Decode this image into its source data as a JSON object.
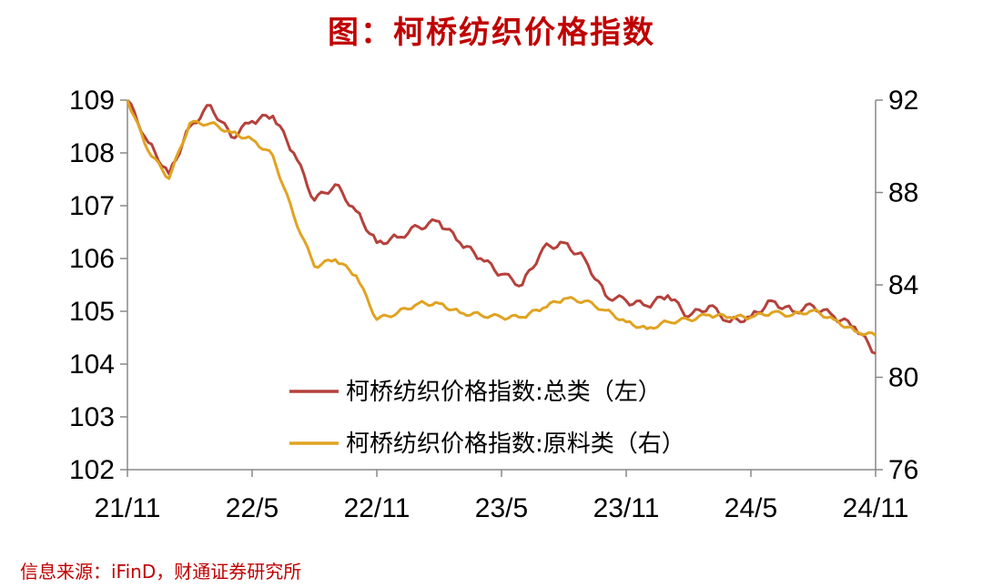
{
  "title": "图：柯桥纺织价格指数",
  "source": "信息来源：iFinD，财通证券研究所",
  "colors": {
    "total": "#b5413c",
    "raw": "#e0a321",
    "title": "#c00000"
  },
  "chart_data": {
    "type": "line",
    "x_ticks": [
      "21/11",
      "22/5",
      "22/11",
      "23/5",
      "23/11",
      "24/5",
      "24/11"
    ],
    "ylim_left": [
      102,
      109
    ],
    "yticks_left": [
      102,
      103,
      104,
      105,
      106,
      107,
      108,
      109
    ],
    "ylim_right": [
      76,
      92
    ],
    "yticks_right": [
      76,
      80,
      84,
      88,
      92
    ],
    "legend": [
      "柯桥纺织价格指数:总类（左）",
      "柯桥纺织价格指数:原料类（右）"
    ],
    "series": [
      {
        "name": "柯桥纺织价格指数:总类（左）",
        "axis": "left",
        "x": [
          "21/11",
          "21/12",
          "22/1",
          "22/2",
          "22/3",
          "22/4",
          "22/5",
          "22/6",
          "22/7",
          "22/8",
          "22/9",
          "22/10",
          "22/11",
          "22/12",
          "23/1",
          "23/2",
          "23/3",
          "23/4",
          "23/5",
          "23/6",
          "23/7",
          "23/8",
          "23/9",
          "23/10",
          "23/11",
          "23/12",
          "24/1",
          "24/2",
          "24/3",
          "24/4",
          "24/5",
          "24/6",
          "24/7",
          "24/8",
          "24/9",
          "24/10",
          "24/11"
        ],
        "values": [
          109.0,
          108.2,
          107.6,
          108.5,
          108.9,
          108.3,
          108.6,
          108.7,
          108.0,
          107.1,
          107.4,
          106.9,
          106.3,
          106.4,
          106.6,
          106.7,
          106.3,
          106.0,
          105.7,
          105.5,
          106.2,
          106.3,
          106.0,
          105.3,
          105.2,
          105.1,
          105.3,
          104.9,
          105.1,
          104.8,
          104.9,
          105.2,
          105.0,
          105.1,
          104.9,
          104.7,
          104.2
        ]
      },
      {
        "name": "柯桥纺织价格指数:原料类（右）",
        "axis": "right",
        "x": [
          "21/11",
          "21/12",
          "22/1",
          "22/2",
          "22/3",
          "22/4",
          "22/5",
          "22/6",
          "22/7",
          "22/8",
          "22/9",
          "22/10",
          "22/11",
          "22/12",
          "23/1",
          "23/2",
          "23/3",
          "23/4",
          "23/5",
          "23/6",
          "23/7",
          "23/8",
          "23/9",
          "23/10",
          "23/11",
          "23/12",
          "24/1",
          "24/2",
          "24/3",
          "24/4",
          "24/5",
          "24/6",
          "24/7",
          "24/8",
          "24/9",
          "24/10",
          "24/11"
        ],
        "values": [
          92.0,
          89.8,
          88.6,
          91.0,
          91.0,
          90.6,
          90.3,
          89.6,
          87.0,
          84.8,
          85.1,
          84.4,
          82.5,
          82.8,
          83.2,
          83.2,
          82.8,
          82.7,
          82.6,
          82.6,
          83.0,
          83.4,
          83.3,
          82.9,
          82.4,
          82.1,
          82.4,
          82.5,
          82.7,
          82.6,
          82.6,
          82.8,
          82.7,
          82.9,
          82.5,
          82.0,
          81.8
        ]
      }
    ]
  }
}
